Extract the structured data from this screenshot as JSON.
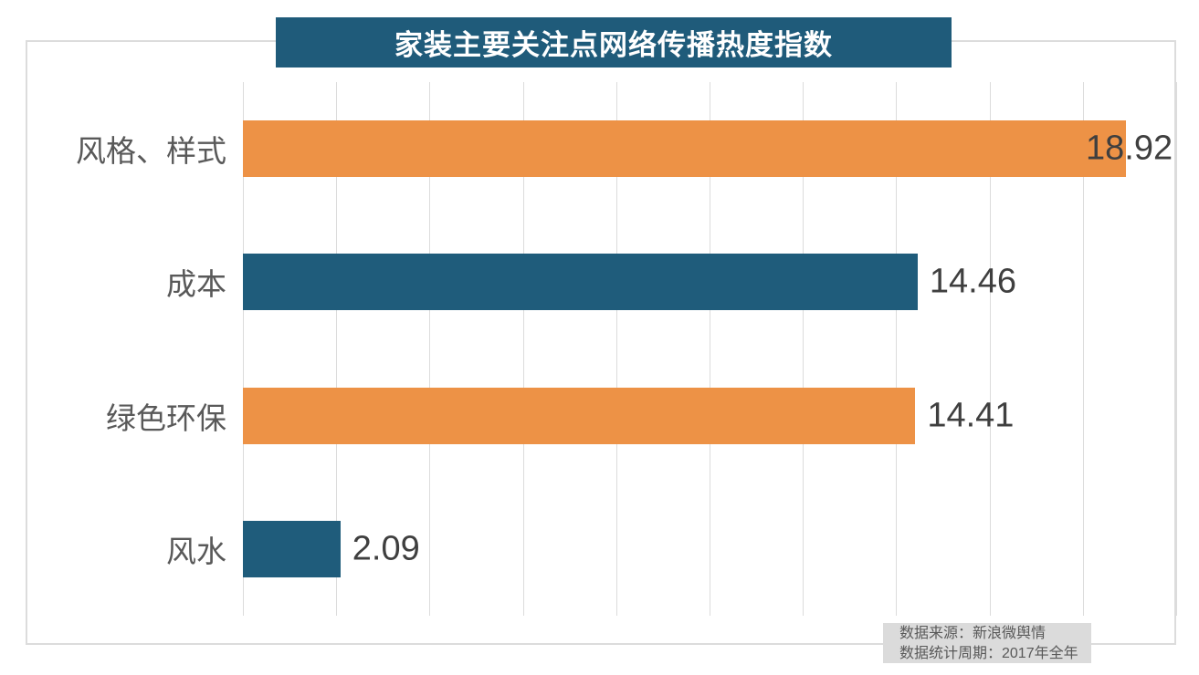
{
  "title": "家装主要关注点网络传播热度指数",
  "source_note": {
    "line1": "数据来源：新浪微舆情",
    "line2": "数据统计周期：2017年全年"
  },
  "colors": {
    "orange": "#ED9246",
    "teal": "#1F5C7B",
    "banner_bg": "#1F5B7A",
    "banner_text": "#FFFFFF",
    "grid": "#DCDCDC",
    "frame_border": "#DCDCDC",
    "category_label": "#595959",
    "value_label": "#3F3F3F",
    "note_bg": "#DBDBDB",
    "note_text": "#595959"
  },
  "chart_data": {
    "type": "bar",
    "orientation": "horizontal",
    "title": "家装主要关注点网络传播热度指数",
    "categories": [
      "风格、样式",
      "成本",
      "绿色环保",
      "风水"
    ],
    "values": [
      18.92,
      14.46,
      14.41,
      2.09
    ],
    "value_labels": [
      "18.92",
      "14.46",
      "14.41",
      "2.09"
    ],
    "series_colors": [
      "#ED9246",
      "#1F5C7B",
      "#ED9246",
      "#1F5C7B"
    ],
    "xlim": [
      0,
      20
    ],
    "grid_step": 2,
    "grid": true,
    "legend": false,
    "xlabel": "",
    "ylabel": ""
  }
}
